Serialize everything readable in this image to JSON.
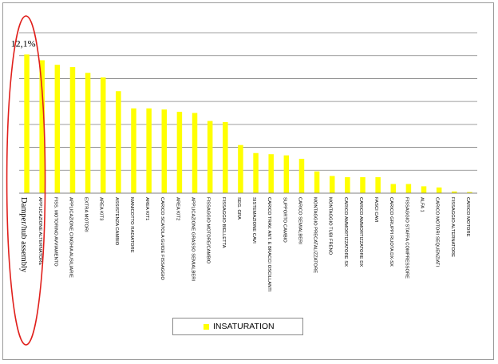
{
  "colors": {
    "bar": "#ffff00",
    "grid": "#808080",
    "ellipse": "#e0201c",
    "axis": "#808080"
  },
  "chart_data": {
    "type": "bar",
    "title": "",
    "xlabel": "",
    "ylabel": "",
    "ylim": [
      0,
      14
    ],
    "grid": true,
    "legend_position": "bottom",
    "categories": [
      "Damper/hub assembly",
      "APPLICAZIONE ALTERNATORE",
      "FISS. MOTORINO AVVIAMENTO",
      "APPLICAZIONE CINGHIA AUSILIARIE",
      "EXTRA MOTORI",
      "AREA KIT3",
      "ASSISTENZA CAMBIO",
      "MANICOTTO RADIATORE",
      "AREA KIT1",
      "CARICO SCATOLA GUIDE FISSAGGIO",
      "AREA KIT2",
      "APPLICAZIONE GRASSO SEMIALBERI",
      "FISSAGGIO MOTORE/CAMBIO",
      "FISSAGGIO BIELLETTA",
      "SEG. GRA",
      "SISTEMAZIONE CAVI",
      "CARICO TRAV. ANT. E BRACCI OSCILLANTI",
      "SUPPORTO CAMBIO",
      "CARICO SEMIALBERI",
      "MONTAGGIO PRECATALIZZATORE",
      "MONTAGGIO TUBI FRENO",
      "CARICO AMMORTIZZATORE SX",
      "CARICO AMMORTIZZATORE DX",
      "FASCI CAVI",
      "CARICO GRUPPI RUOTA DX-SX",
      "FISSAGGIO STAFFA COMPRESSORE",
      "ALFA 1",
      "CARICO MOTORI SEQUENZIATI",
      "FISSAGGIO ALTERNATORE",
      "CARICO MOTORE"
    ],
    "series": [
      {
        "name": "INSATURATION",
        "values": [
          12.1,
          11.6,
          11.2,
          11.0,
          10.5,
          10.1,
          8.9,
          7.4,
          7.4,
          7.3,
          7.1,
          7.0,
          6.3,
          6.2,
          4.2,
          3.5,
          3.4,
          3.3,
          3.0,
          1.9,
          1.5,
          1.4,
          1.4,
          1.4,
          0.8,
          0.8,
          0.6,
          0.5,
          0.15,
          0.1
        ]
      }
    ],
    "annotations": [
      {
        "text": "12,1%",
        "category": "Damper/hub assembly"
      }
    ]
  }
}
